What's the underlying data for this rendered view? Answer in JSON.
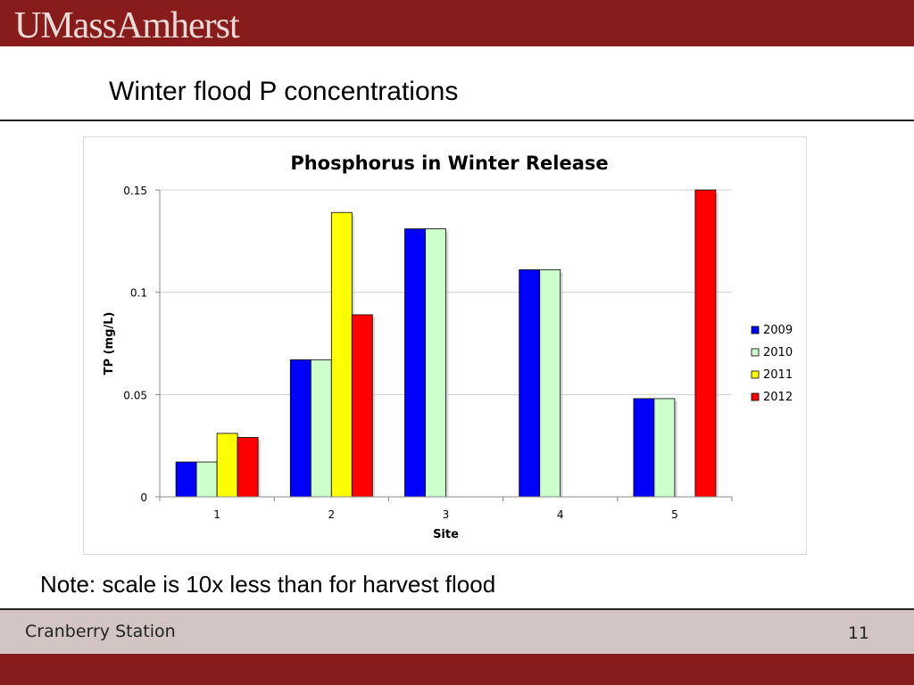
{
  "brand": {
    "logo_text": "UMassAmherst",
    "banner_color": "#881c1c",
    "logo_color": "#e9dcd5"
  },
  "slide": {
    "title": "Winter flood P concentrations",
    "note": "Note: scale is 10x less than for harvest flood"
  },
  "footer": {
    "label": "Cranberry Station",
    "page_number": "11",
    "band_color": "#d4c5c5"
  },
  "chart_data": {
    "type": "bar",
    "title": "Phosphorus in Winter Release",
    "xlabel": "Site",
    "ylabel": "TP (mg/L)",
    "categories": [
      "1",
      "2",
      "3",
      "4",
      "5"
    ],
    "ylim": [
      0,
      0.15
    ],
    "yticks": [
      0,
      0.05,
      0.1,
      0.15
    ],
    "ytick_labels": [
      "0",
      "0.05",
      "0.1",
      "0.15"
    ],
    "grid": true,
    "legend_position": "right",
    "series": [
      {
        "name": "2009",
        "color": "#0000ff",
        "values": [
          0.017,
          0.067,
          0.131,
          0.111,
          0.048
        ]
      },
      {
        "name": "2010",
        "color": "#ccffcc",
        "values": [
          0.017,
          0.067,
          0.131,
          0.111,
          0.048
        ]
      },
      {
        "name": "2011",
        "color": "#ffff00",
        "values": [
          0.031,
          0.139,
          null,
          null,
          null
        ]
      },
      {
        "name": "2012",
        "color": "#ff0000",
        "values": [
          0.029,
          0.089,
          null,
          null,
          0.15
        ]
      }
    ]
  }
}
